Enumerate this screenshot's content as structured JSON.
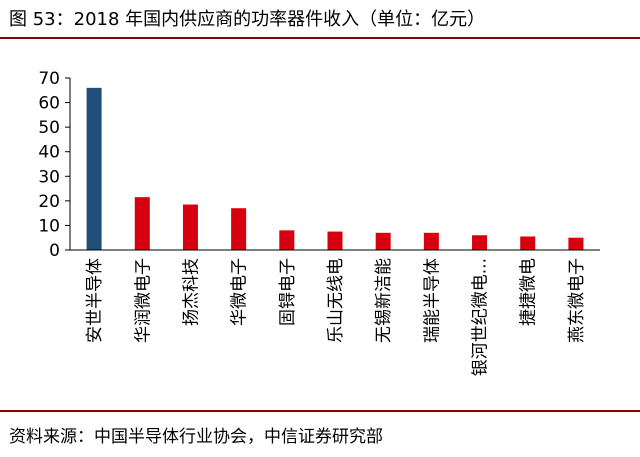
{
  "header": {
    "title": "图 53：2018 年国内供应商的功率器件收入（单位：亿元）"
  },
  "footer": {
    "source": "资料来源：中国半导体行业协会，中信证券研究部"
  },
  "colors": {
    "highlight": "#1f4e79",
    "default": "#d7000f",
    "rule": "#8b0000"
  },
  "chart_data": {
    "type": "bar",
    "title": "2018 年国内供应商的功率器件收入（单位：亿元）",
    "xlabel": "",
    "ylabel": "亿元",
    "ylim": [
      0,
      70
    ],
    "yticks": [
      0,
      10,
      20,
      30,
      40,
      50,
      60,
      70
    ],
    "grid": false,
    "categories": [
      "安世半导体",
      "华润微电子",
      "扬杰科技",
      "华微电子",
      "固锝电子",
      "乐山无线电",
      "无锡新洁能",
      "瑞能半导体",
      "银河世纪微电...",
      "捷捷微电",
      "燕东微电子"
    ],
    "values": [
      66,
      21.5,
      18.5,
      17,
      8,
      7.5,
      7,
      7,
      6,
      5.5,
      5
    ],
    "highlight_index": 0
  }
}
